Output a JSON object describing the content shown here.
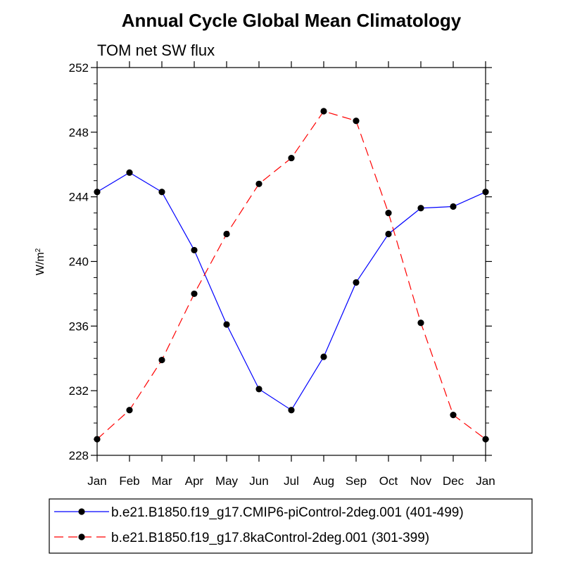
{
  "chart_data": {
    "type": "line",
    "title": "Annual Cycle Global Mean Climatology",
    "subtitle": "TOM net SW flux",
    "ylabel": "W/m",
    "ylabel_superscript": "2",
    "categories": [
      "Jan",
      "Feb",
      "Mar",
      "Apr",
      "May",
      "Jun",
      "Jul",
      "Aug",
      "Sep",
      "Oct",
      "Nov",
      "Dec",
      "Jan"
    ],
    "ylim": [
      228,
      252
    ],
    "yticks": [
      "228",
      "232",
      "236",
      "240",
      "244",
      "248",
      "252"
    ],
    "series": [
      {
        "name": "b.e21.B1850.f19_g17.CMIP6-piControl-2deg.001 (401-499)",
        "color": "#0000ff",
        "line_style": "solid",
        "values": [
          244.3,
          245.5,
          244.3,
          240.7,
          236.1,
          232.1,
          230.8,
          234.1,
          238.7,
          241.7,
          243.3,
          243.4,
          244.3
        ]
      },
      {
        "name": "b.e21.B1850.f19_g17.8kaControl-2deg.001 (301-399)",
        "color": "#ff0000",
        "line_style": "dashed",
        "values": [
          229.0,
          230.8,
          233.9,
          238.0,
          241.7,
          244.8,
          246.4,
          249.3,
          248.7,
          243.0,
          236.2,
          230.5,
          229.0
        ]
      }
    ],
    "grid": false,
    "legend_position": "bottom"
  }
}
